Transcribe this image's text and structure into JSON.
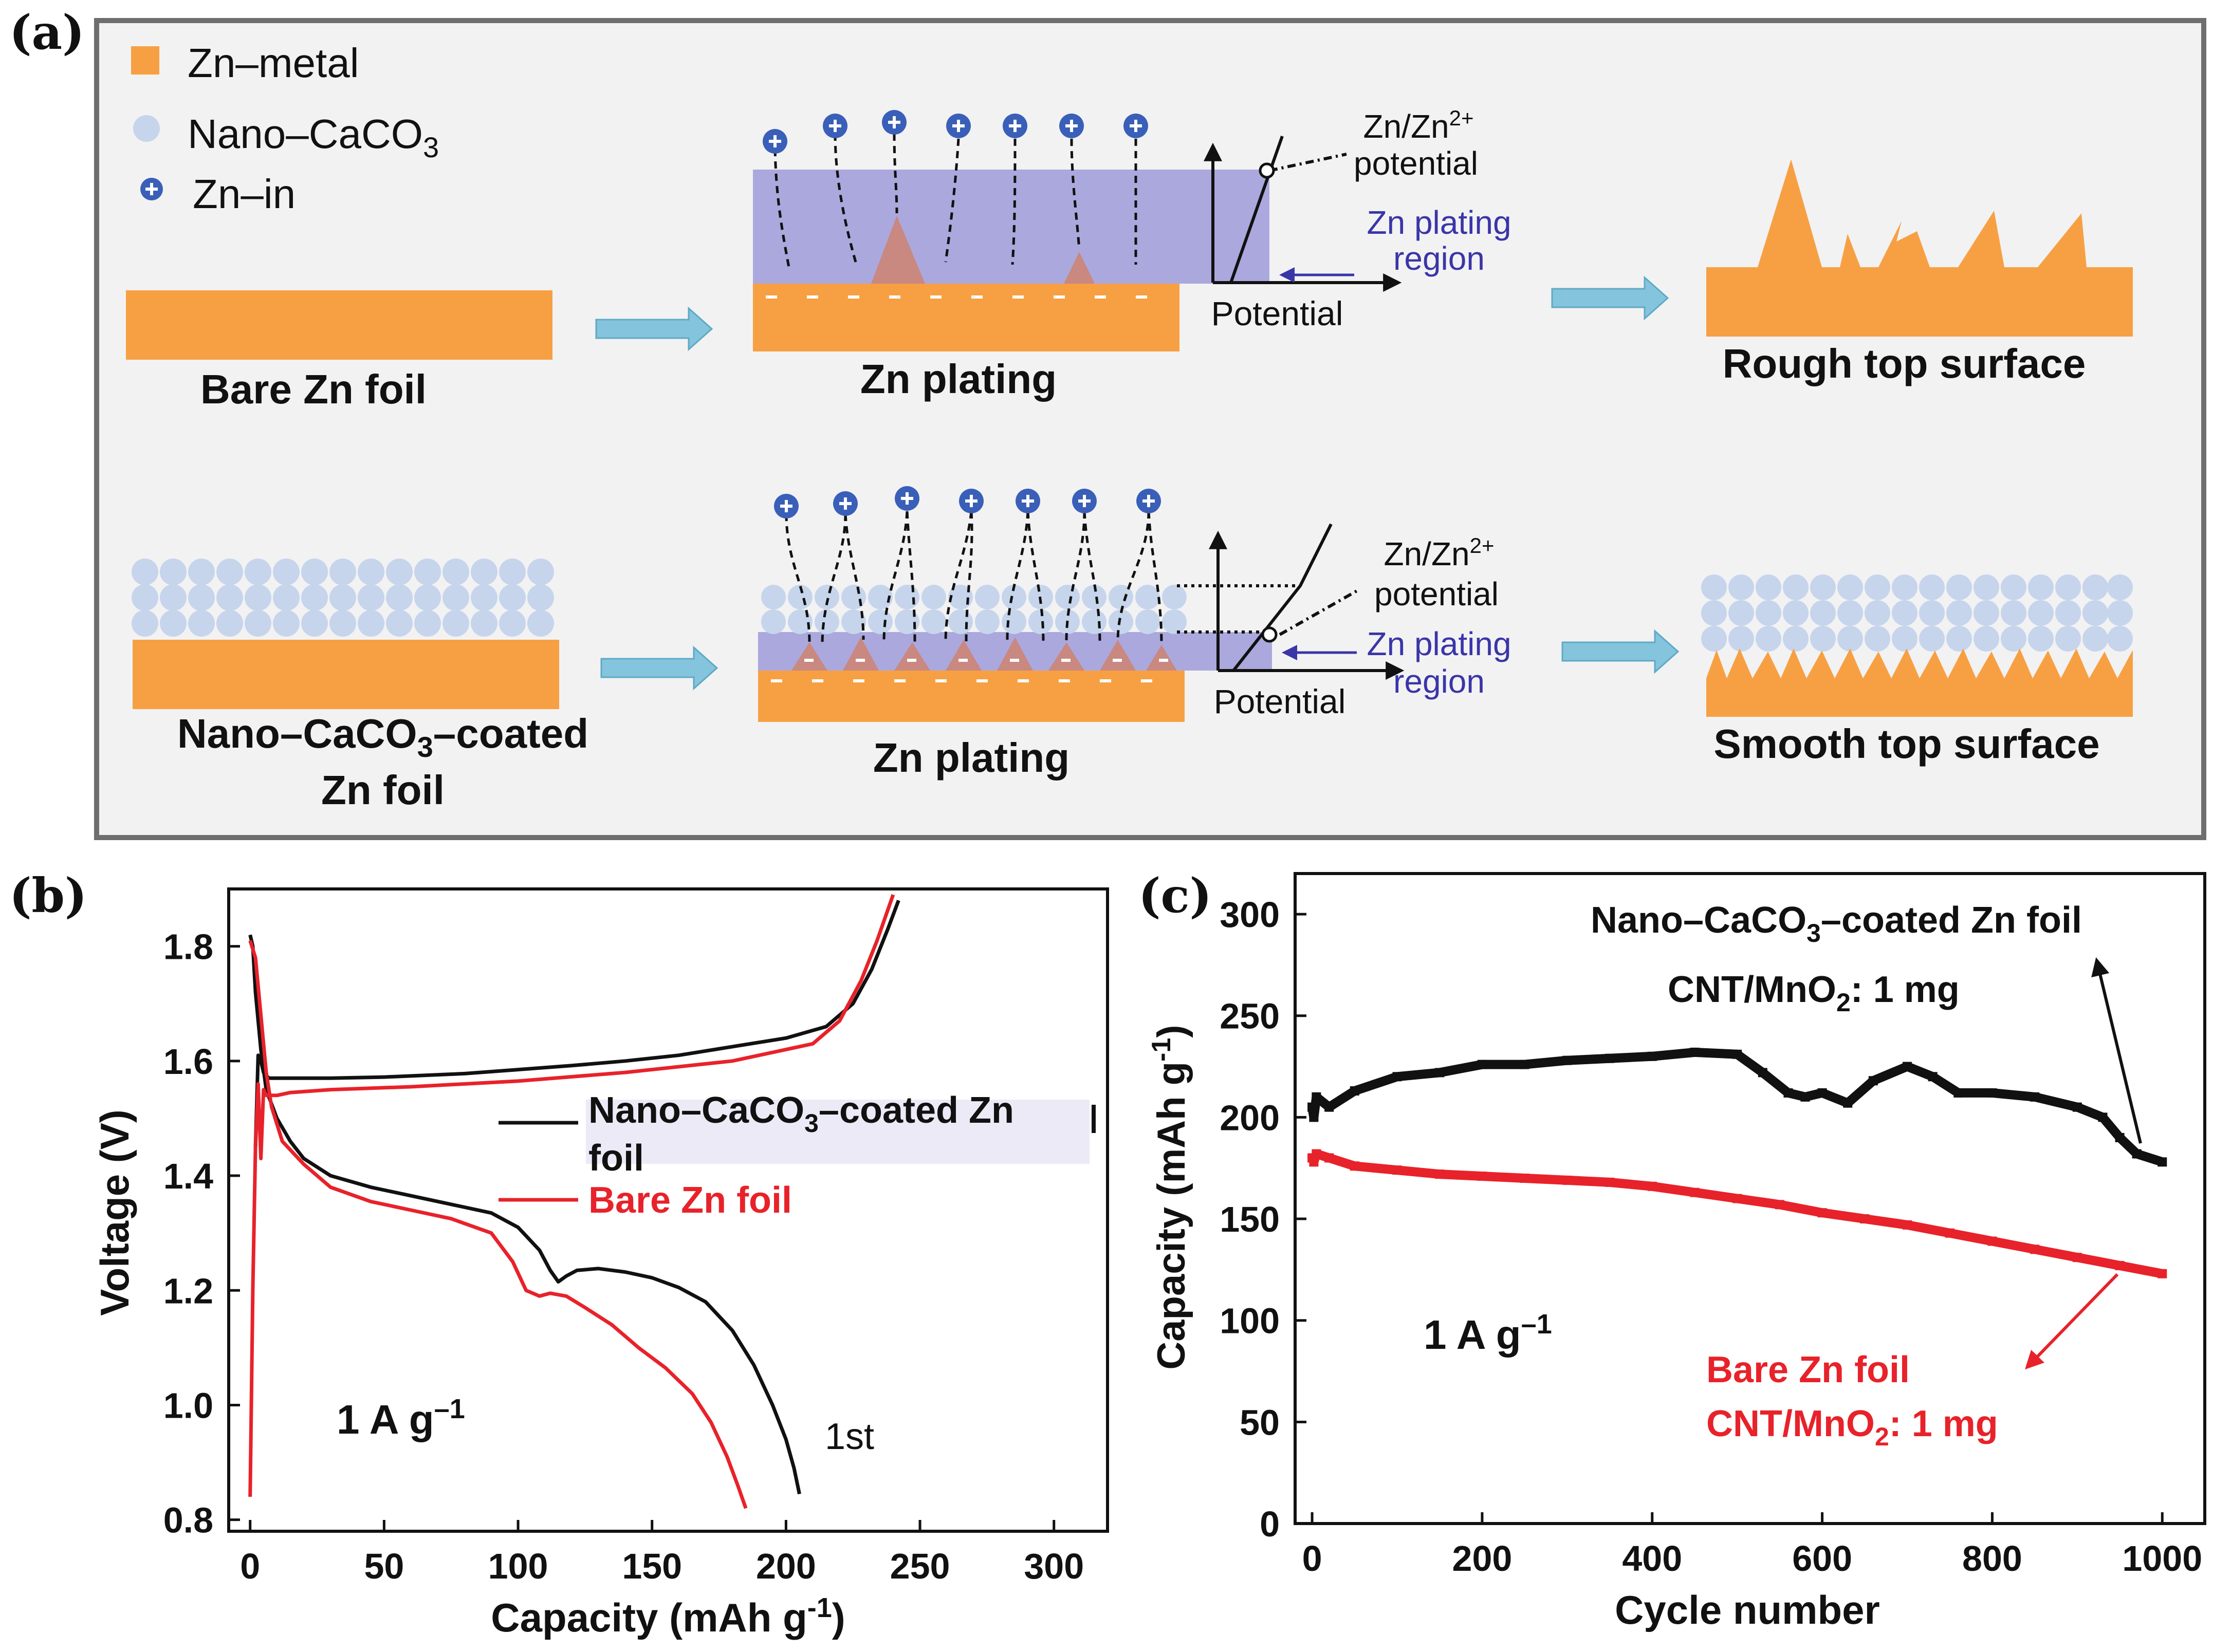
{
  "colors": {
    "zn_orange": "#f7a043",
    "caco3_blue": "#c6d5ec",
    "ion_blue": "#3a5fb8",
    "region_purple": "#9f9bd9",
    "arrow_cyan": "#84c4dc",
    "bare_red": "#e8222a",
    "coated_black": "#111111",
    "label_blue": "#3a35a8"
  },
  "panel_a": {
    "panel_label": "(a)",
    "legend": {
      "zn_metal": "Zn–metal",
      "nano_caco3": "Nano–CaCO",
      "nano_caco3_sub": "3",
      "zn_in": "Zn–in"
    },
    "top_row": {
      "start_label": "Bare Zn  foil",
      "plating_label": "Zn plating",
      "potential_label": "Potential",
      "zn_zn_label": "Zn/Zn",
      "zn_zn_sup": "2+",
      "potential_word": "potential",
      "region_line1": "Zn plating",
      "region_line2": "region",
      "result_label": "Rough top surface"
    },
    "bottom_row": {
      "start_label_line1": "Nano–CaCO",
      "start_label_sub": "3",
      "start_label_line1_end": "–coated",
      "start_label_line2": "Zn foil",
      "plating_label": "Zn  plating",
      "potential_label": "Potential",
      "zn_zn_label": "Zn/Zn",
      "zn_zn_sup": "2+",
      "potential_word": "potential",
      "region_line1": "Zn plating",
      "region_line2": "region",
      "result_label": "Smooth top surface"
    }
  },
  "chart_data": [
    {
      "panel_label": "(b)",
      "type": "line",
      "title": "",
      "xlabel": "Capacity  (mAh g",
      "xlabel_sup": "-1",
      "xlabel_end": ")",
      "ylabel": "Voltage (V)",
      "xlim": [
        -8,
        320
      ],
      "ylim": [
        0.78,
        1.9
      ],
      "xticks": [
        0,
        50,
        100,
        150,
        200,
        250,
        300
      ],
      "xtick_labels": [
        "0",
        "50",
        "100",
        "150",
        "200",
        "250",
        "300"
      ],
      "yticks": [
        0.8,
        1.0,
        1.2,
        1.4,
        1.6,
        1.8
      ],
      "ytick_labels": [
        "0.8",
        "1.0",
        "1.2",
        "1.4",
        "1.6",
        "1.8"
      ],
      "legend": [
        {
          "name": "Nano–CaCO",
          "sub": "3",
          "tail": "–coated Zn",
          "line2": "foil"
        },
        {
          "name": "Bare Zn foil"
        }
      ],
      "annotations": {
        "rate": "1 A g",
        "rate_sup": "–1",
        "cycle": "1st"
      },
      "series": [
        {
          "name": "Nano–CaCO3–coated Zn foil discharge",
          "x": [
            0,
            1,
            2,
            4,
            6,
            10,
            15,
            20,
            30,
            45,
            60,
            75,
            90,
            100,
            108,
            112,
            115,
            118,
            122,
            130,
            140,
            150,
            160,
            170,
            180,
            188,
            195,
            200,
            203,
            205
          ],
          "y": [
            1.82,
            1.8,
            1.72,
            1.62,
            1.55,
            1.5,
            1.46,
            1.43,
            1.4,
            1.38,
            1.365,
            1.35,
            1.335,
            1.31,
            1.27,
            1.235,
            1.215,
            1.225,
            1.235,
            1.238,
            1.232,
            1.222,
            1.205,
            1.18,
            1.13,
            1.07,
            1.0,
            0.94,
            0.89,
            0.845
          ]
        },
        {
          "name": "Nano–CaCO3–coated Zn foil charge",
          "x": [
            2,
            3,
            4,
            5,
            7,
            10,
            15,
            30,
            50,
            80,
            100,
            120,
            140,
            160,
            180,
            200,
            215,
            225,
            232,
            238,
            242
          ],
          "y": [
            1.45,
            1.61,
            1.6,
            1.58,
            1.57,
            1.57,
            1.57,
            1.57,
            1.572,
            1.578,
            1.585,
            1.592,
            1.6,
            1.61,
            1.625,
            1.64,
            1.66,
            1.7,
            1.76,
            1.83,
            1.88
          ]
        },
        {
          "name": "Bare Zn foil discharge",
          "x": [
            0,
            2,
            4,
            6,
            8,
            12,
            20,
            30,
            45,
            60,
            75,
            90,
            98,
            103,
            108,
            112,
            118,
            125,
            135,
            145,
            155,
            165,
            172,
            178,
            182,
            185
          ],
          "y": [
            1.81,
            1.78,
            1.68,
            1.58,
            1.52,
            1.46,
            1.42,
            1.38,
            1.355,
            1.34,
            1.325,
            1.3,
            1.25,
            1.2,
            1.19,
            1.195,
            1.19,
            1.17,
            1.14,
            1.1,
            1.065,
            1.02,
            0.97,
            0.91,
            0.86,
            0.82
          ]
        },
        {
          "name": "Bare Zn foil charge",
          "x": [
            0,
            1,
            2,
            3,
            4,
            5,
            6,
            8,
            10,
            15,
            30,
            60,
            100,
            140,
            180,
            210,
            220,
            228,
            234,
            240
          ],
          "y": [
            0.84,
            1.2,
            1.45,
            1.56,
            1.43,
            1.55,
            1.54,
            1.54,
            1.54,
            1.545,
            1.55,
            1.555,
            1.565,
            1.58,
            1.6,
            1.63,
            1.67,
            1.74,
            1.81,
            1.89
          ]
        }
      ]
    },
    {
      "panel_label": "(c)",
      "type": "scatter",
      "title": "",
      "xlabel": "Cycle number",
      "ylabel": "Capacity  (mAh g",
      "ylabel_sup": "-1",
      "ylabel_end": ")",
      "xlim": [
        -20,
        1050
      ],
      "ylim": [
        0,
        320
      ],
      "xticks": [
        0,
        200,
        400,
        600,
        800,
        1000
      ],
      "xtick_labels": [
        "0",
        "200",
        "400",
        "600",
        "800",
        "1000"
      ],
      "yticks": [
        0,
        50,
        100,
        150,
        200,
        250,
        300
      ],
      "ytick_labels": [
        "0",
        "50",
        "100",
        "150",
        "200",
        "250",
        "300"
      ],
      "annotations": {
        "coated_line1a": "Nano–CaCO",
        "coated_line1sub": "3",
        "coated_line1b": "–coated Zn foil",
        "coated_line2a": "CNT/MnO",
        "coated_line2sub": "2",
        "coated_line2b": ": 1 mg",
        "rate": "1 A g",
        "rate_sup": "–1",
        "bare_line1": "Bare Zn foil",
        "bare_line2a": "CNT/MnO",
        "bare_line2sub": "2",
        "bare_line2b": ": 1 mg"
      },
      "series": [
        {
          "name": "Nano–CaCO3–coated Zn foil",
          "x": [
            0,
            2,
            5,
            20,
            50,
            100,
            150,
            200,
            250,
            300,
            350,
            400,
            450,
            500,
            530,
            560,
            580,
            600,
            630,
            660,
            700,
            730,
            760,
            800,
            850,
            900,
            930,
            950,
            970,
            1000
          ],
          "y": [
            205,
            200,
            210,
            205,
            213,
            220,
            222,
            226,
            226,
            228,
            229,
            230,
            232,
            231,
            222,
            212,
            210,
            212,
            207,
            218,
            225,
            220,
            212,
            212,
            210,
            205,
            200,
            190,
            182,
            178
          ]
        },
        {
          "name": "Bare Zn foil",
          "x": [
            0,
            2,
            5,
            20,
            50,
            100,
            150,
            200,
            250,
            300,
            350,
            400,
            450,
            500,
            550,
            600,
            650,
            700,
            750,
            800,
            850,
            900,
            950,
            1000
          ],
          "y": [
            180,
            178,
            182,
            180,
            176,
            174,
            172,
            171,
            170,
            169,
            168,
            166,
            163,
            160,
            157,
            153,
            150,
            147,
            143,
            139,
            135,
            131,
            127,
            123
          ]
        }
      ]
    }
  ]
}
